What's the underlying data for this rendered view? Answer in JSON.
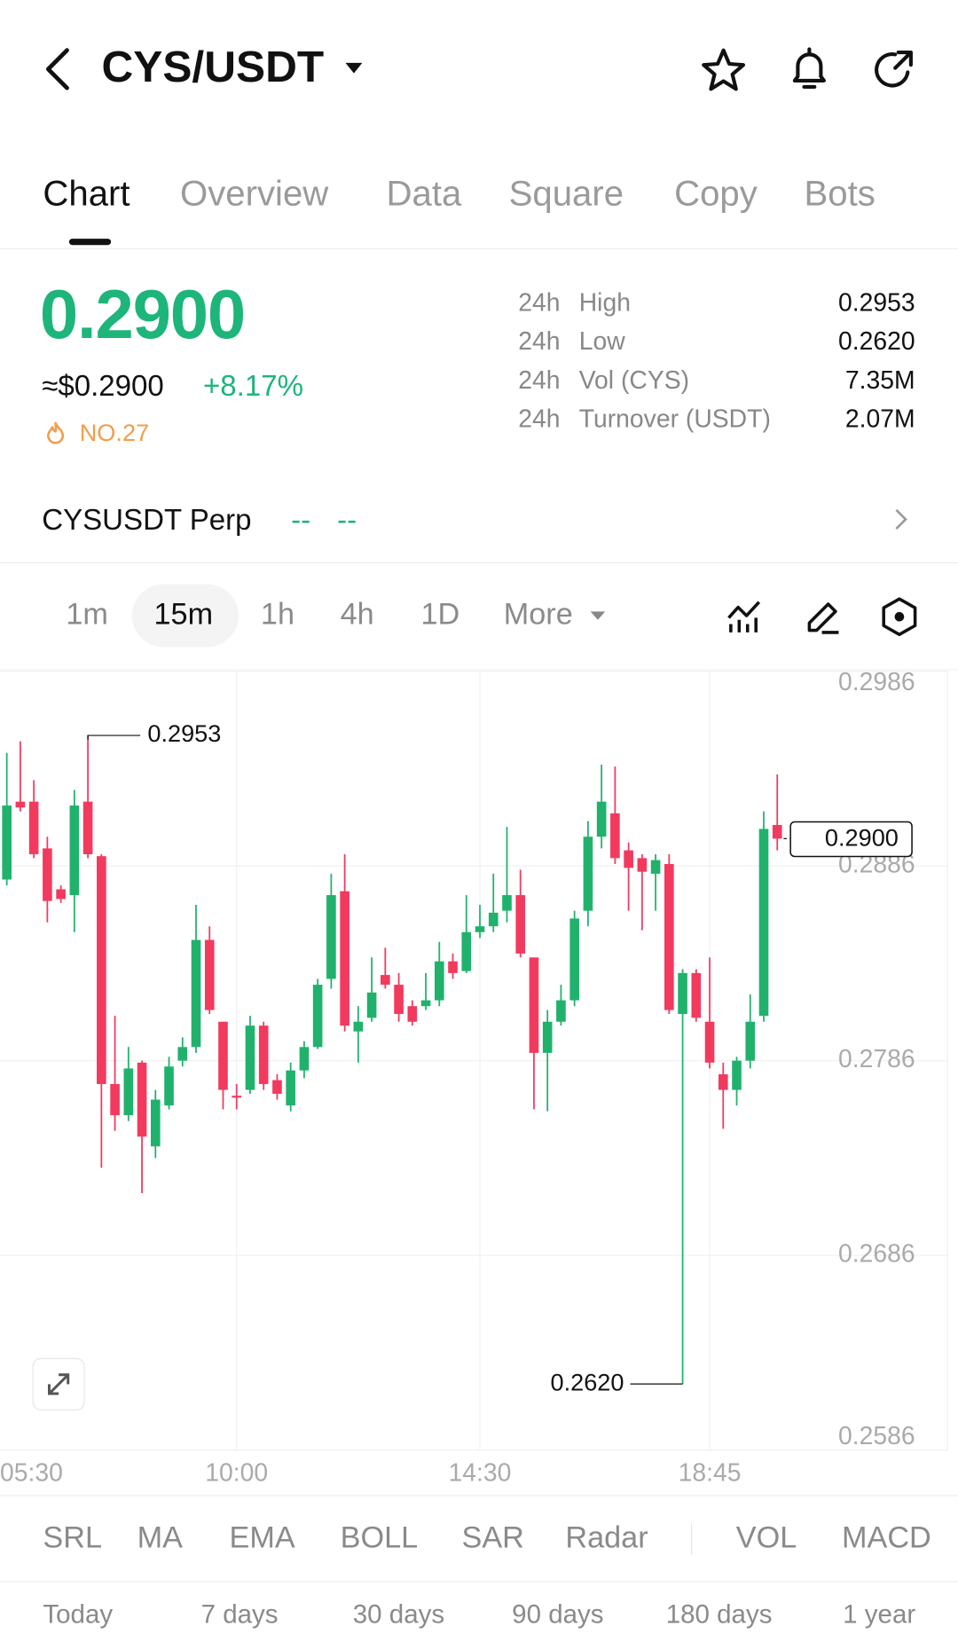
{
  "header": {
    "title": "CYS/USDT"
  },
  "tabs": [
    "Chart",
    "Overview",
    "Data",
    "Square",
    "Copy",
    "Bots"
  ],
  "price": {
    "last": "0.2900",
    "fiat": "≈$0.2900",
    "change": "+8.17%",
    "rank": "NO.27"
  },
  "stats": [
    {
      "period": "24h",
      "name": "High",
      "value": "0.2953"
    },
    {
      "period": "24h",
      "name": "Low",
      "value": "0.2620"
    },
    {
      "period": "24h",
      "name": "Vol (CYS)",
      "value": "7.35M"
    },
    {
      "period": "24h",
      "name": "Turnover (USDT)",
      "value": "2.07M"
    }
  ],
  "perp": {
    "name": "CYSUSDT Perp",
    "values": [
      "--",
      "--"
    ]
  },
  "intervals": [
    "1m",
    "15m",
    "1h",
    "4h",
    "1D",
    "More"
  ],
  "chart_data": {
    "type": "candlestick",
    "up_color": "#20b26c",
    "down_color": "#f23a5e",
    "grid": true,
    "open": [
      0.2879,
      0.2919,
      0.2919,
      0.2895,
      0.2874,
      0.2871,
      0.2919,
      0.2891,
      0.2774,
      0.2758,
      0.2785,
      0.2742,
      0.2763,
      0.2786,
      0.2793,
      0.2848,
      0.2806,
      0.2768,
      0.2771,
      0.2804,
      0.2776,
      0.2763,
      0.2781,
      0.2793,
      0.2828,
      0.2873,
      0.2801,
      0.2808,
      0.283,
      0.2825,
      0.2814,
      0.2814,
      0.2817,
      0.2837,
      0.2832,
      0.2852,
      0.2855,
      0.2863,
      0.2871,
      0.2839,
      0.279,
      0.2806,
      0.2817,
      0.2863,
      0.2901,
      0.2913,
      0.2894,
      0.289,
      0.2882,
      0.2887,
      0.281,
      0.2831,
      0.2806,
      0.2779,
      0.2771,
      0.2786,
      0.2809,
      0.2907
    ],
    "high": [
      0.2944,
      0.295,
      0.293,
      0.2901,
      0.2876,
      0.2925,
      0.2953,
      0.2892,
      0.2809,
      0.2793,
      0.2786,
      0.2771,
      0.2788,
      0.2798,
      0.2866,
      0.2855,
      0.2806,
      0.2774,
      0.2809,
      0.2806,
      0.2779,
      0.2785,
      0.2796,
      0.2828,
      0.2882,
      0.2892,
      0.2814,
      0.2839,
      0.2844,
      0.2831,
      0.2817,
      0.2831,
      0.2847,
      0.2841,
      0.2871,
      0.2866,
      0.2882,
      0.2906,
      0.2884,
      0.2839,
      0.2812,
      0.2825,
      0.2863,
      0.2909,
      0.2938,
      0.2937,
      0.2898,
      0.2892,
      0.2892,
      0.2892,
      0.2833,
      0.2833,
      0.2839,
      0.2785,
      0.2788,
      0.282,
      0.2914,
      0.2933
    ],
    "low": [
      0.2876,
      0.2914,
      0.289,
      0.2857,
      0.2867,
      0.2852,
      0.289,
      0.2731,
      0.275,
      0.2755,
      0.2718,
      0.2736,
      0.2761,
      0.2783,
      0.279,
      0.281,
      0.2761,
      0.2761,
      0.2769,
      0.2771,
      0.2766,
      0.276,
      0.2777,
      0.2792,
      0.2823,
      0.2801,
      0.2785,
      0.2806,
      0.2823,
      0.2806,
      0.2804,
      0.2812,
      0.2814,
      0.2828,
      0.2831,
      0.2849,
      0.2852,
      0.2857,
      0.2839,
      0.2761,
      0.276,
      0.2804,
      0.2814,
      0.2855,
      0.2895,
      0.2887,
      0.2863,
      0.2853,
      0.2863,
      0.281,
      0.262,
      0.2806,
      0.2782,
      0.2751,
      0.2763,
      0.2782,
      0.2806,
      0.2894
    ],
    "close": [
      0.2917,
      0.2916,
      0.2892,
      0.2868,
      0.2869,
      0.2917,
      0.2892,
      0.2774,
      0.2758,
      0.2782,
      0.2747,
      0.2766,
      0.2783,
      0.2793,
      0.2848,
      0.2812,
      0.2771,
      0.2767,
      0.2804,
      0.2774,
      0.2769,
      0.2781,
      0.2793,
      0.2825,
      0.2871,
      0.2804,
      0.2806,
      0.2821,
      0.2825,
      0.281,
      0.2806,
      0.2817,
      0.2837,
      0.2831,
      0.2852,
      0.2855,
      0.2862,
      0.2871,
      0.2841,
      0.279,
      0.2806,
      0.2817,
      0.2859,
      0.2901,
      0.2919,
      0.289,
      0.2885,
      0.2883,
      0.2889,
      0.2812,
      0.2831,
      0.2808,
      0.2785,
      0.2771,
      0.2786,
      0.2806,
      0.2905,
      0.29
    ],
    "ylim": [
      0.2586,
      0.2986
    ],
    "yticks": [
      0.2986,
      0.2886,
      0.2786,
      0.2686,
      0.2586
    ],
    "xticks": [
      {
        "value": -1,
        "label": "05:30"
      },
      {
        "value": 17,
        "label": "10:00"
      },
      {
        "value": 35,
        "label": "14:30"
      },
      {
        "value": 52,
        "label": "18:45"
      }
    ],
    "high_marker": 0.2953,
    "low_marker": {
      "value": 0.262,
      "label": "0.2620"
    },
    "last_price": {
      "value": 0.29,
      "label": "0.2900"
    }
  },
  "indicators": [
    "SRL",
    "MA",
    "EMA",
    "BOLL",
    "SAR",
    "Radar",
    "VOL",
    "MACD"
  ],
  "periods": [
    "Today",
    "7 days",
    "30 days",
    "90 days",
    "180 days",
    "1 year"
  ]
}
